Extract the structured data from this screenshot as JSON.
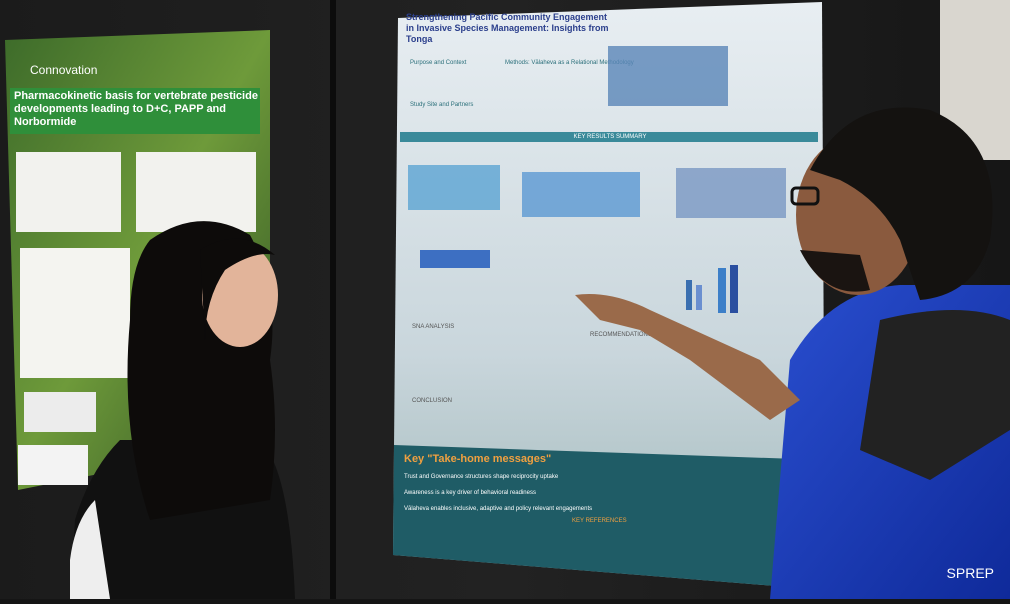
{
  "photo": {
    "credit": "SPREP",
    "left_poster": {
      "logo": "Connovation",
      "title": "Pharmacokinetic basis for vertebrate pesticide developments leading to D+C, PAPP and Norbormide"
    },
    "right_poster": {
      "title": "Strengthening Pacific Community Engagement in Invasive Species Management: Insights from Tonga",
      "sections": [
        "Purpose and Context",
        "Methods: Vālaheva as a Relational Methodology",
        "Study Site and Partners",
        "KEY RESULTS SUMMARY",
        "SNA ANALYSIS",
        "CONCLUSION",
        "RECOMMENDATIONS",
        "KEY REFERENCES"
      ],
      "takeaway_title": "Key \"Take-home messages\"",
      "takeaways": [
        "Trust and Governance structures shape reciprocity uptake",
        "Awareness is a key driver of behavioral readiness",
        "Vālaheva enables inclusive, adaptive and policy relevant engagements"
      ]
    }
  }
}
